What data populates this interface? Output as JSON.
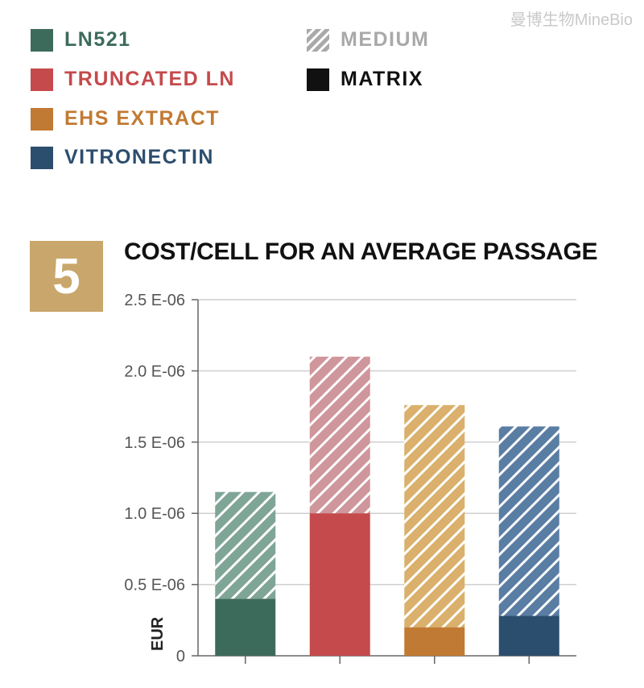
{
  "watermark": "曼博生物MineBio",
  "legend": {
    "items": [
      {
        "label": "LN521",
        "color": "#3d6b5b"
      },
      {
        "label": "TRUNCATED LN",
        "color": "#c54a4c"
      },
      {
        "label": "EHS EXTRACT",
        "color": "#c17a33"
      },
      {
        "label": "VITRONECTIN",
        "color": "#2c4e6e"
      },
      {
        "label": "MEDIUM",
        "color": "#a9a9a9",
        "pattern": "hatched"
      },
      {
        "label": "MATRIX",
        "color": "#111111"
      }
    ]
  },
  "figure_number": "5",
  "chart_data": {
    "type": "bar",
    "stacked": true,
    "title": "COST/CELL FOR AN AVERAGE PASSAGE",
    "ylabel": "EUR",
    "ylim": [
      0,
      2.5e-06
    ],
    "yticks": [
      0,
      5e-07,
      1e-06,
      1.5e-06,
      2e-06,
      2.5e-06
    ],
    "ytick_labels": [
      "0",
      "0.5 E-06",
      "1.0 E-06",
      "1.5 E-06",
      "2.0 E-06",
      "2.5 E-06"
    ],
    "grid": true,
    "categories": [
      "LN521",
      "TRUNCATED LN",
      "EHS EXTRACT",
      "VITRONECTIN"
    ],
    "bar_colors": [
      "#3d6b5b",
      "#c54a4c",
      "#c17a33",
      "#2c4e6e"
    ],
    "medium_colors": [
      "#7fa596",
      "#cf969b",
      "#dab06c",
      "#5a7da3"
    ],
    "series": [
      {
        "name": "MATRIX",
        "values": [
          4e-07,
          1e-06,
          2e-07,
          2.8e-07
        ]
      },
      {
        "name": "MEDIUM",
        "values": [
          7.5e-07,
          1.1e-06,
          1.56e-06,
          1.33e-06
        ]
      }
    ]
  }
}
